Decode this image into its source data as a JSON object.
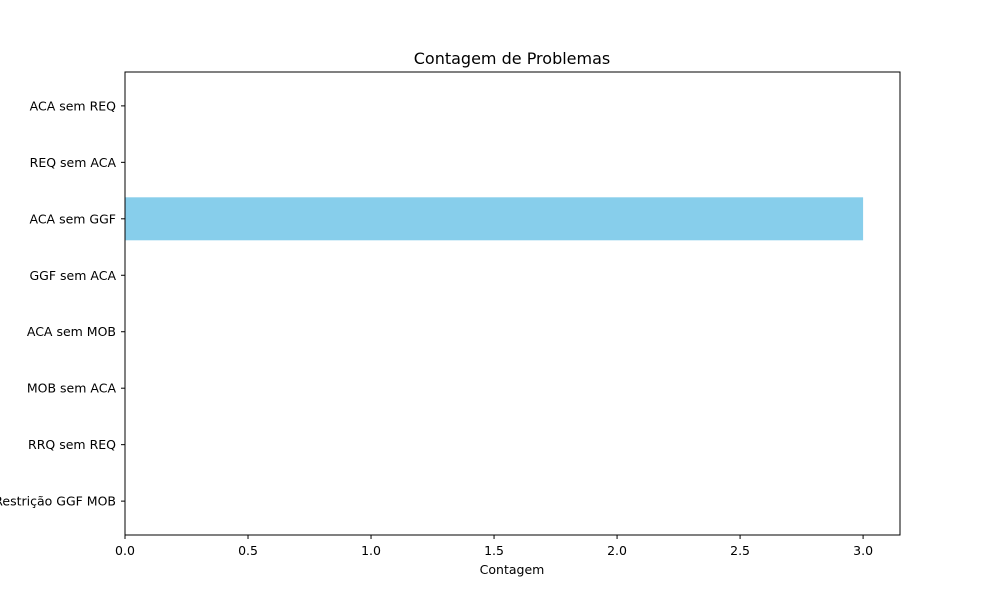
{
  "chart_data": {
    "type": "bar",
    "orientation": "horizontal",
    "title": "Contagem de Problemas",
    "xlabel": "Contagem",
    "ylabel": "",
    "categories": [
      "ACA sem REQ",
      "REQ sem ACA",
      "ACA sem GGF",
      "GGF sem ACA",
      "ACA sem MOB",
      "MOB sem ACA",
      "RRQ sem REQ",
      "Restrição GGF MOB"
    ],
    "values": [
      0,
      0,
      3,
      0,
      0,
      0,
      0,
      0
    ],
    "xlim": [
      0,
      3.15
    ],
    "xticks": [
      0.0,
      0.5,
      1.0,
      1.5,
      2.0,
      2.5,
      3.0
    ],
    "xtick_labels": [
      "0.0",
      "0.5",
      "1.0",
      "1.5",
      "2.0",
      "2.5",
      "3.0"
    ],
    "bar_color": "#87ceeb",
    "grid": false,
    "legend": false
  }
}
